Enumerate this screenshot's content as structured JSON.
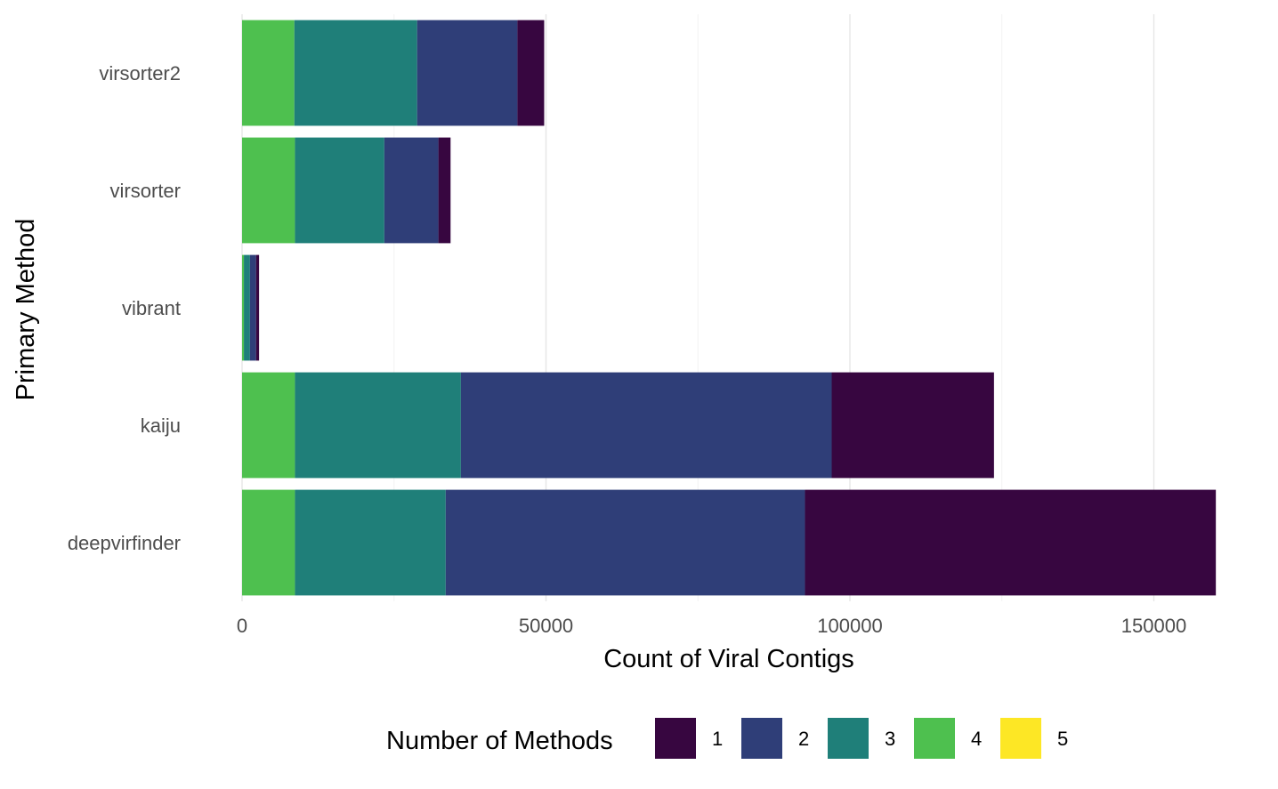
{
  "chart_data": {
    "type": "bar",
    "orientation": "horizontal",
    "stacked": true,
    "categories": [
      "virsorter2",
      "virsorter",
      "vibrant",
      "kaiju",
      "deepvirfinder"
    ],
    "series": [
      {
        "name": "5",
        "color": "#FDE725",
        "values": [
          0,
          0,
          0,
          0,
          0
        ]
      },
      {
        "name": "4",
        "color": "#4EC04F",
        "values": [
          8600,
          8700,
          300,
          8700,
          8700
        ]
      },
      {
        "name": "3",
        "color": "#1F7F79",
        "values": [
          20200,
          14700,
          1000,
          27300,
          24800
        ]
      },
      {
        "name": "2",
        "color": "#2F3E78",
        "values": [
          16500,
          8900,
          1000,
          61000,
          59100
        ]
      },
      {
        "name": "1",
        "color": "#370640",
        "values": [
          4400,
          2000,
          500,
          26700,
          67600
        ]
      }
    ],
    "xlabel": "Count of Viral Contigs",
    "ylabel": "Primary Method",
    "xlim": [
      0,
      160000
    ],
    "xticks": [
      0,
      50000,
      100000,
      150000
    ],
    "grid": true,
    "legend": {
      "title": "Number of Methods",
      "placement": "bottom",
      "entries": [
        "1",
        "2",
        "3",
        "4",
        "5"
      ]
    }
  }
}
